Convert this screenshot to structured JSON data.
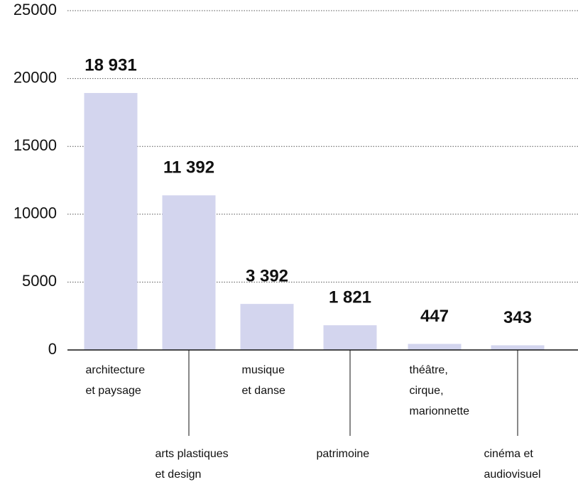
{
  "chart_data": {
    "type": "bar",
    "categories": [
      [
        "architecture",
        "et paysage"
      ],
      [
        "arts plastiques",
        "et design"
      ],
      [
        "musique",
        "et danse"
      ],
      [
        "patrimoine"
      ],
      [
        "théâtre,",
        "cirque,",
        "marionnette"
      ],
      [
        "cinéma et",
        "audiovisuel"
      ]
    ],
    "values": [
      18931,
      11392,
      3392,
      1821,
      447,
      343
    ],
    "value_labels": [
      "18 931",
      "11 392",
      "3 392",
      "1 821",
      "447",
      "343"
    ],
    "color": "#d3d5ee",
    "ylim": [
      0,
      25000
    ],
    "yticks": [
      0,
      5000,
      10000,
      15000,
      20000,
      25000
    ],
    "grid": true
  }
}
